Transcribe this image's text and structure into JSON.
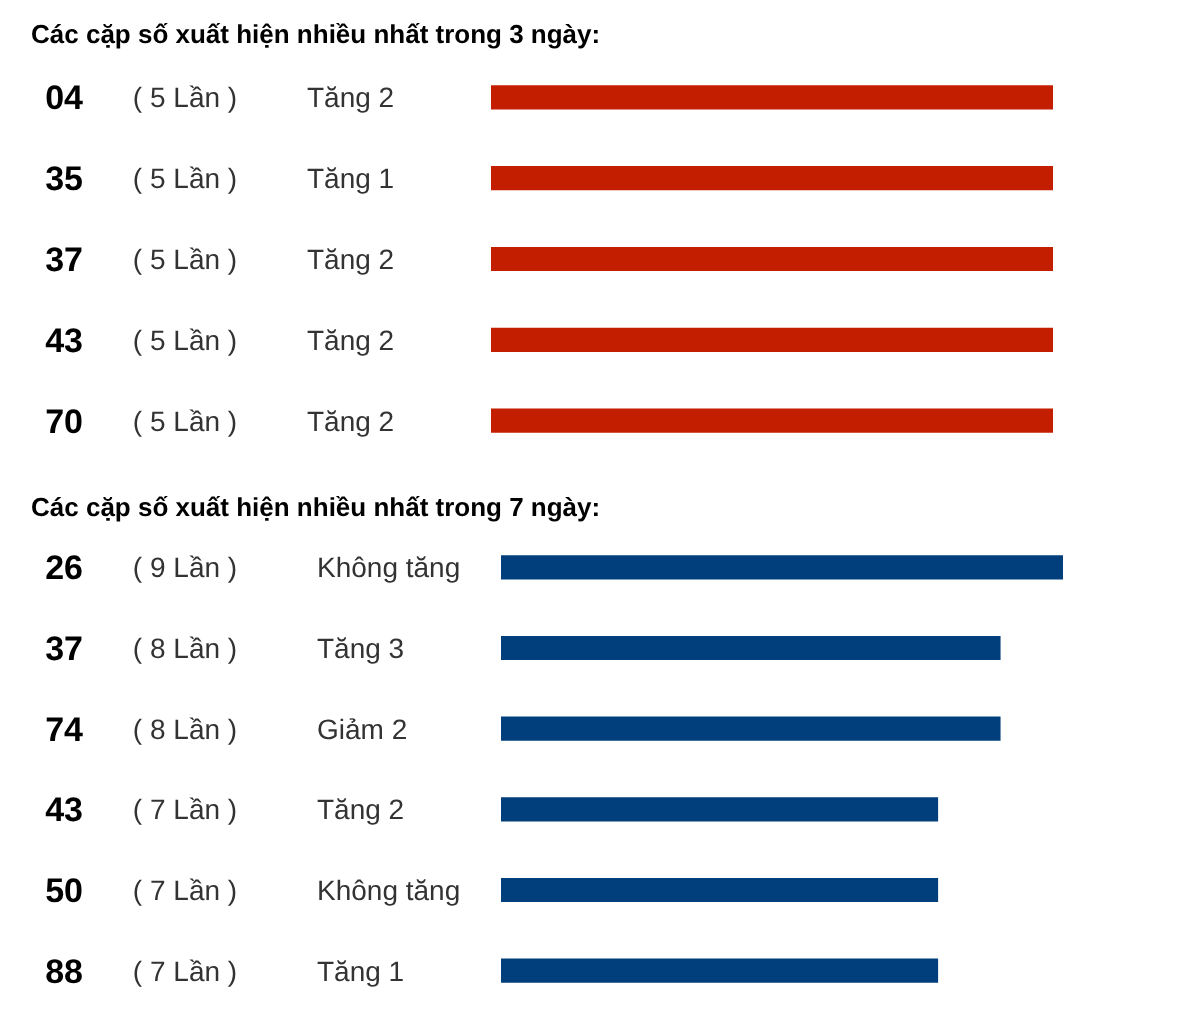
{
  "chart_data": [
    {
      "type": "bar",
      "orientation": "horizontal",
      "title": "Các cặp số xuất hiện nhiều nhất trong 3 ngày:",
      "categories": [
        "04",
        "35",
        "37",
        "43",
        "70"
      ],
      "values": [
        5,
        5,
        5,
        5,
        5
      ],
      "color": "#c41e00",
      "value_labels": [
        "( 5 Lần )",
        "( 5 Lần )",
        "( 5 Lần )",
        "( 5 Lần )",
        "( 5 Lần )"
      ],
      "tick_labels": "y",
      "annotations": [
        "Tăng 2",
        "Tăng 1",
        "Tăng 2",
        "Tăng 2",
        "Tăng 2"
      ]
    },
    {
      "type": "bar",
      "orientation": "horizontal",
      "title": "Các cặp số xuất hiện nhiều nhất trong 7 ngày:",
      "categories": [
        "26",
        "37",
        "74",
        "43",
        "50",
        "88"
      ],
      "values": [
        9,
        8,
        8,
        7,
        7,
        7
      ],
      "color": "#013f7c",
      "value_labels": [
        "( 9 Lần )",
        "( 8 Lần )",
        "( 8 Lần )",
        "( 7 Lần )",
        "( 7 Lần )",
        "( 7 Lần )"
      ],
      "tick_labels": "y",
      "annotations": [
        "Không tăng",
        "Tăng 3",
        "Giảm 2",
        "Tăng 2",
        "Không tăng",
        "Tăng 1"
      ]
    }
  ]
}
